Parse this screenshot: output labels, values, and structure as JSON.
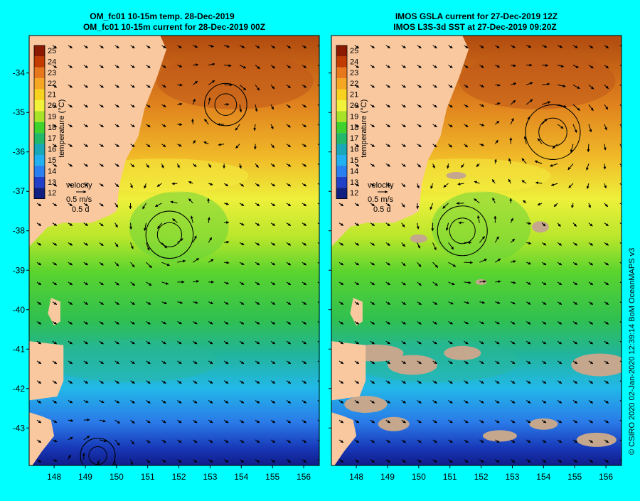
{
  "colors": {
    "background": "#00ffff",
    "land": "#f9c89f",
    "missing_data": "#c4a78c",
    "arrow": "#000000"
  },
  "panels": [
    {
      "id": "model",
      "title_line1": "OM_fc01 10-15m temp. 28-Dec-2019",
      "title_line2": "OM_fc01 10-15m current for 28-Dec-2019 00Z",
      "show_y_labels": true,
      "has_missing_patches": false,
      "eddies": [
        {
          "lon": 151.7,
          "lat": -38.1,
          "radius_deg": 0.95
        },
        {
          "lon": 153.5,
          "lat": -34.8,
          "radius_deg": 0.85
        },
        {
          "lon": 149.4,
          "lat": -43.7,
          "radius_deg": 0.7
        }
      ]
    },
    {
      "id": "observed",
      "title_line1": "IMOS GSLA current for 27-Dec-2019 12Z",
      "title_line2": "IMOS L3S-3d SST at 27-Dec-2019 09:20Z",
      "show_y_labels": false,
      "has_missing_patches": true,
      "eddies": [
        {
          "lon": 151.4,
          "lat": -38.0,
          "radius_deg": 1.0
        },
        {
          "lon": 154.3,
          "lat": -35.5,
          "radius_deg": 1.1
        }
      ]
    }
  ],
  "colorbar": {
    "title": "temperature (°C)",
    "ticks": [
      "25",
      "24",
      "23",
      "22",
      "21",
      "20",
      "19",
      "18",
      "17",
      "16",
      "15",
      "14",
      "13",
      "12"
    ],
    "colors": [
      "#8b1a00",
      "#c23c00",
      "#e8781e",
      "#f5a623",
      "#f7d21e",
      "#f2f23a",
      "#a8e32a",
      "#3fd12e",
      "#22b86a",
      "#1aa8b8",
      "#22b0f0",
      "#2a80f0",
      "#2040c8",
      "#102080"
    ]
  },
  "velocity_legend": {
    "label": "velocity",
    "speed": "0.5 m/s",
    "duration": "0.5 d"
  },
  "x_axis": {
    "range": [
      147.2,
      156.5
    ],
    "ticks": [
      "148",
      "149",
      "150",
      "151",
      "152",
      "153",
      "154",
      "155",
      "156"
    ]
  },
  "y_axis": {
    "range": [
      -43.95,
      -33.05
    ],
    "ticks": [
      "-34",
      "-35",
      "-36",
      "-37",
      "-38",
      "-39",
      "-40",
      "-41",
      "-42",
      "-43"
    ]
  },
  "credit": "© CSIRO 2020   02-Jan-2020 12:39:14 BoM OceanMAPS v3"
}
